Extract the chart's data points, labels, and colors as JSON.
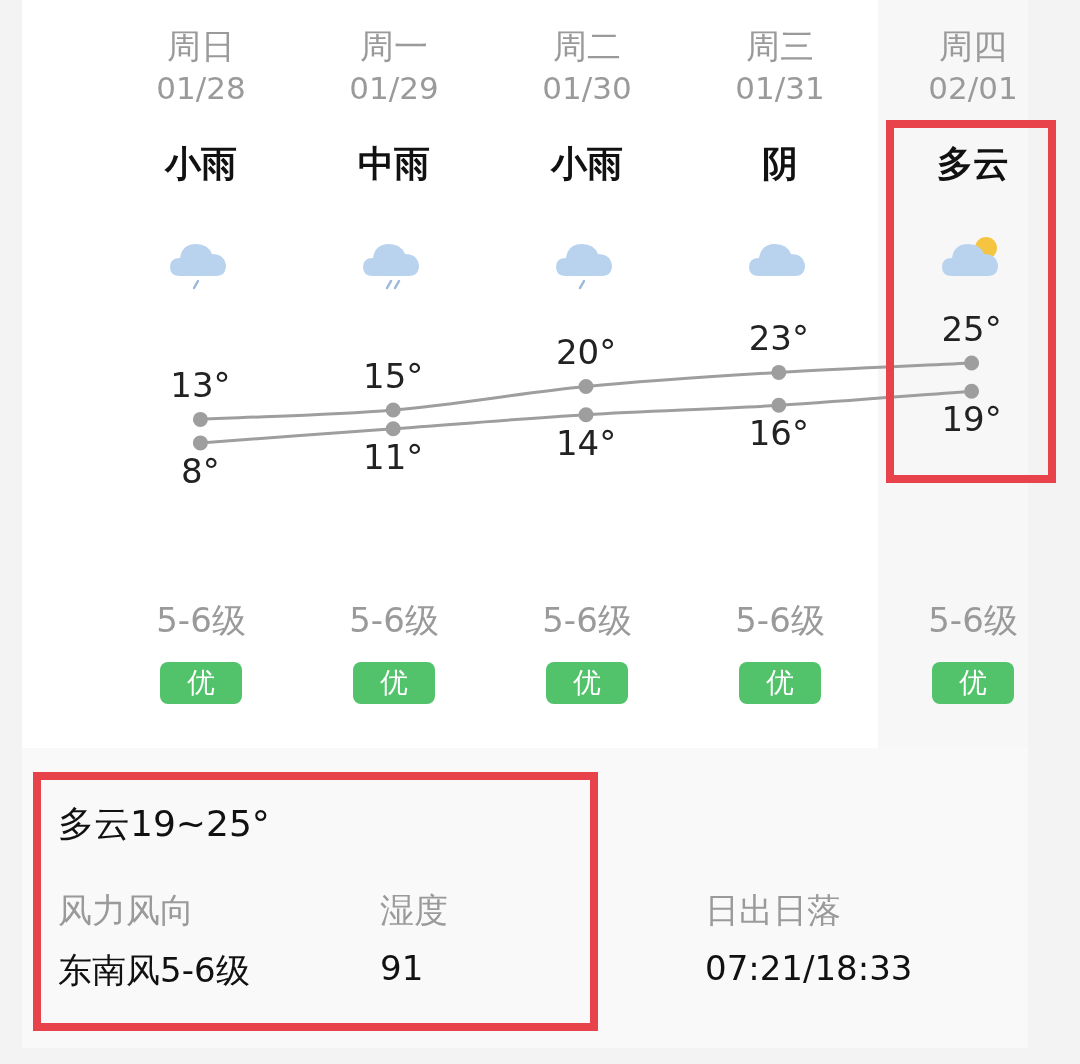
{
  "chart_data": {
    "type": "line",
    "categories": [
      "周日\n01/28",
      "周一\n01/29",
      "周二\n01/30",
      "周三\n01/31",
      "周四\n02/01"
    ],
    "series": [
      {
        "color": "#9e9e9e",
        "values": [
          13,
          15,
          20,
          23,
          25
        ],
        "value_labels": [
          "13°",
          "15°",
          "20°",
          "23°",
          "25°"
        ]
      },
      {
        "color": "#9e9e9e",
        "values": [
          8,
          11,
          14,
          16,
          19
        ],
        "value_labels": [
          "8°",
          "11°",
          "14°",
          "16°",
          "19°"
        ]
      }
    ],
    "marker": "circle",
    "line_style": "solid",
    "annotations": [
      "小雨",
      "中雨",
      "小雨",
      "阴",
      "多云",
      "5-6级",
      "5-6级",
      "5-6级",
      "5-6级",
      "5-6级",
      "优",
      "优",
      "优",
      "优",
      "优",
      "多云19~25°",
      "风力风向",
      "东南风5-6级",
      "湿度",
      "91",
      "日出日落",
      "07:21/18:33"
    ]
  }
}
